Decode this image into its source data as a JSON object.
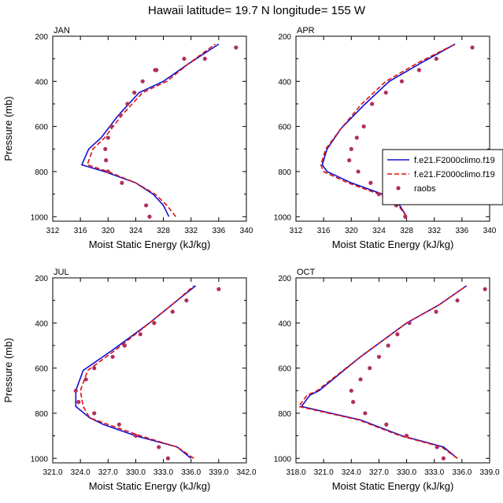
{
  "figure": {
    "title": "Hawaii  latitude= 19.7 N longitude= 155 W",
    "colors": {
      "model1": "#1010d0",
      "model2": "#e01010",
      "raobs": "#b03060",
      "axis": "#000000"
    }
  },
  "chart_data": [
    {
      "type": "line",
      "title": "JAN",
      "xlabel": "Moist Static Energy (kJ/kg)",
      "ylabel": "Pressure (mb)",
      "xlim": [
        312,
        340
      ],
      "ylim": [
        1020,
        200
      ],
      "xticks": [
        "312",
        "316",
        "320",
        "324",
        "328",
        "332",
        "336",
        "340"
      ],
      "yticks": [
        "200",
        "400",
        "600",
        "800",
        "1000"
      ],
      "series": [
        {
          "name": "f.e21.F2000climo.f19",
          "style": "solid",
          "x": [
            328.8,
            328.0,
            326.5,
            324.0,
            319.5,
            316.2,
            317.2,
            319.0,
            321.5,
            324.5,
            328.0,
            331.5,
            336.0
          ],
          "y": [
            1000,
            950,
            900,
            850,
            800,
            770,
            700,
            650,
            550,
            450,
            400,
            325,
            235
          ]
        },
        {
          "name": "f.e21.F2000climo.f19",
          "style": "dashed",
          "x": [
            329.8,
            328.5,
            326.8,
            324.0,
            320.0,
            317.0,
            317.8,
            319.5,
            322.0,
            325.0,
            328.5,
            331.5,
            335.5
          ],
          "y": [
            1000,
            950,
            900,
            850,
            800,
            770,
            700,
            650,
            550,
            450,
            400,
            325,
            235
          ]
        },
        {
          "name": "raobs",
          "style": "points",
          "x": [
            326.0,
            325.5,
            322.0,
            320.0,
            319.7,
            319.6,
            320.0,
            320.5,
            321.8,
            322.8,
            323.8,
            325.0,
            326.8,
            327.0,
            331.0,
            334.0,
            338.5
          ],
          "y": [
            1000,
            950,
            850,
            800,
            750,
            700,
            650,
            600,
            550,
            500,
            450,
            400,
            350,
            350,
            300,
            300,
            250
          ]
        }
      ]
    },
    {
      "type": "line",
      "title": "APR",
      "xlabel": "Moist Static Energy (kJ/kg)",
      "ylabel": "",
      "xlim": [
        312,
        340
      ],
      "ylim": [
        1020,
        200
      ],
      "xticks": [
        "312",
        "316",
        "320",
        "324",
        "328",
        "332",
        "336",
        "340"
      ],
      "yticks": [
        "200",
        "400",
        "600",
        "800",
        "1000"
      ],
      "legend": {
        "position": "middle-right",
        "entries": [
          "f.e21.F2000climo.f19",
          "f.e21.F2000climo.f19",
          "raobs"
        ]
      },
      "series": [
        {
          "name": "f.e21.F2000climo.f19",
          "style": "solid",
          "x": [
            328.0,
            327.0,
            324.5,
            320.0,
            316.5,
            315.8,
            316.5,
            318.5,
            322.0,
            325.5,
            330.0,
            335.0
          ],
          "y": [
            1000,
            950,
            900,
            850,
            800,
            770,
            700,
            610,
            500,
            400,
            320,
            235
          ]
        },
        {
          "name": "f.e21.F2000climo.f19",
          "style": "dashed",
          "x": [
            328.0,
            326.8,
            324.0,
            319.5,
            316.0,
            315.6,
            316.3,
            318.5,
            321.5,
            325.0,
            329.5,
            335.0
          ],
          "y": [
            1000,
            950,
            900,
            850,
            800,
            770,
            700,
            610,
            500,
            400,
            320,
            235
          ]
        },
        {
          "name": "raobs",
          "style": "points",
          "x": [
            327.8,
            326.5,
            324.0,
            322.8,
            321.0,
            319.7,
            320.0,
            320.8,
            321.8,
            323.0,
            325.0,
            327.3,
            329.8,
            332.3,
            337.5
          ],
          "y": [
            1000,
            950,
            900,
            850,
            800,
            750,
            700,
            650,
            600,
            500,
            450,
            400,
            350,
            300,
            250
          ]
        }
      ]
    },
    {
      "type": "line",
      "title": "JUL",
      "xlabel": "Moist Static Energy (kJ/kg)",
      "ylabel": "Pressure (mb)",
      "xlim": [
        321,
        342
      ],
      "ylim": [
        1020,
        200
      ],
      "xticks": [
        "321.0",
        "324.0",
        "327.0",
        "330.0",
        "333.0",
        "336.0",
        "339.0",
        "342.0"
      ],
      "yticks": [
        "200",
        "400",
        "600",
        "800",
        "1000"
      ],
      "series": [
        {
          "name": "f.e21.F2000climo.f19",
          "style": "solid",
          "x": [
            336.0,
            334.5,
            330.0,
            326.5,
            325.0,
            323.5,
            323.5,
            324.3,
            327.5,
            331.5,
            334.5,
            336.5
          ],
          "y": [
            1000,
            950,
            900,
            850,
            820,
            770,
            700,
            610,
            520,
            400,
            300,
            235
          ]
        },
        {
          "name": "f.e21.F2000climo.f19",
          "style": "dashed",
          "x": [
            336.3,
            334.5,
            330.5,
            327.0,
            325.0,
            324.3,
            324.0,
            324.8,
            327.8,
            331.5,
            334.5,
            336.3
          ],
          "y": [
            1000,
            950,
            900,
            850,
            820,
            770,
            700,
            610,
            520,
            400,
            300,
            235
          ]
        },
        {
          "name": "raobs",
          "style": "points",
          "x": [
            333.5,
            332.5,
            330.0,
            328.2,
            325.5,
            323.8,
            323.5,
            324.6,
            325.5,
            327.5,
            328.8,
            330.5,
            332.0,
            334.0,
            335.5,
            339.0
          ],
          "y": [
            1000,
            950,
            900,
            850,
            800,
            750,
            700,
            650,
            600,
            550,
            500,
            450,
            400,
            350,
            300,
            250
          ]
        }
      ]
    },
    {
      "type": "line",
      "title": "OCT",
      "xlabel": "Moist Static Energy (kJ/kg)",
      "ylabel": "",
      "xlim": [
        318,
        339
      ],
      "ylim": [
        1020,
        200
      ],
      "xticks": [
        "318.0",
        "321.0",
        "324.0",
        "327.0",
        "330.0",
        "333.0",
        "336.0",
        "339.0"
      ],
      "yticks": [
        "200",
        "400",
        "600",
        "800",
        "1000"
      ],
      "series": [
        {
          "name": "f.e21.F2000climo.f19",
          "style": "solid",
          "x": [
            335.5,
            334.0,
            329.5,
            325.0,
            318.6,
            319.5,
            320.5,
            325.0,
            330.0,
            333.5,
            336.5
          ],
          "y": [
            1000,
            950,
            900,
            830,
            770,
            720,
            700,
            550,
            400,
            320,
            235
          ]
        },
        {
          "name": "f.e21.F2000climo.f19",
          "style": "dashed",
          "x": [
            335.5,
            333.8,
            329.3,
            324.8,
            318.3,
            319.2,
            320.3,
            325.0,
            330.0,
            333.5,
            336.5
          ],
          "y": [
            1000,
            950,
            900,
            830,
            770,
            720,
            700,
            550,
            400,
            320,
            235
          ]
        },
        {
          "name": "raobs",
          "style": "points",
          "x": [
            334.0,
            333.3,
            330.0,
            327.8,
            325.5,
            324.2,
            324.0,
            325.0,
            326.0,
            327.0,
            328.0,
            329.0,
            330.3,
            333.2,
            335.5,
            338.5
          ],
          "y": [
            1000,
            950,
            900,
            850,
            800,
            750,
            700,
            650,
            600,
            550,
            500,
            450,
            400,
            350,
            300,
            250
          ]
        }
      ]
    }
  ]
}
